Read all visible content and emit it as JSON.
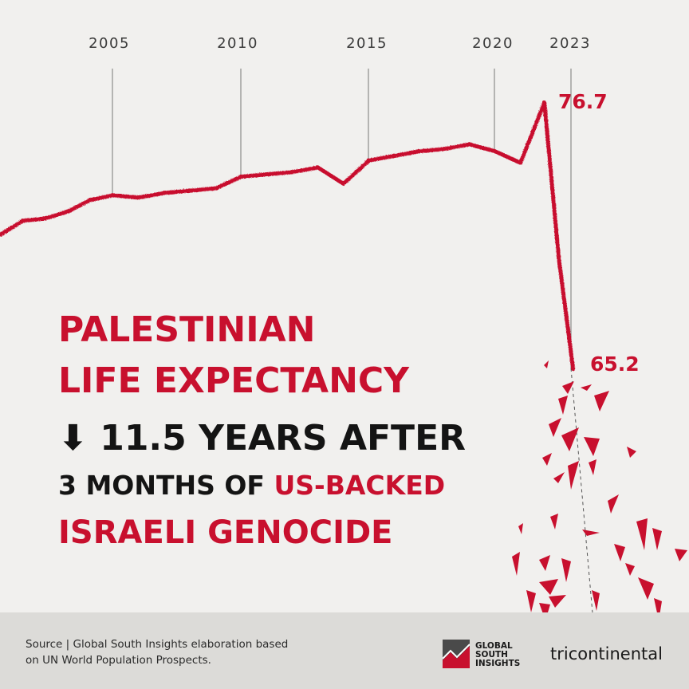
{
  "chart_data": {
    "type": "line",
    "x": [
      2000,
      2001,
      2002,
      2003,
      2004,
      2005,
      2006,
      2007,
      2008,
      2009,
      2010,
      2011,
      2012,
      2013,
      2014,
      2015,
      2016,
      2017,
      2018,
      2019,
      2020,
      2021,
      2022,
      2023,
      2024
    ],
    "values": [
      71.0,
      71.6,
      71.7,
      72.0,
      72.5,
      72.7,
      72.6,
      72.8,
      72.9,
      73.0,
      73.5,
      73.6,
      73.7,
      73.9,
      73.2,
      74.2,
      74.4,
      74.6,
      74.7,
      74.9,
      74.6,
      74.1,
      76.7,
      70.0,
      65.2
    ],
    "year_labels": [
      "2005",
      "2010",
      "2015",
      "2020",
      "2023"
    ],
    "annotations": {
      "peak": "76.7",
      "low": "65.2"
    },
    "colors": {
      "line": "#c8102e"
    }
  },
  "headline": {
    "line1": "PALESTINIAN",
    "line2": "LIFE EXPECTANCY",
    "arrow": "⬇",
    "line3": "11.5 YEARS AFTER",
    "line4_a": "3 MONTHS OF",
    "line4_b": "US-BACKED",
    "line5": "ISRAELI GENOCIDE"
  },
  "footer": {
    "source_line1": "Source | Global South Insights elaboration based",
    "source_line2": "on UN World Population Prospects.",
    "gsi_1": "GLOBAL",
    "gsi_2": "SOUTH",
    "gsi_3": "INSIGHTS",
    "tricontinental": "tricontinental"
  }
}
